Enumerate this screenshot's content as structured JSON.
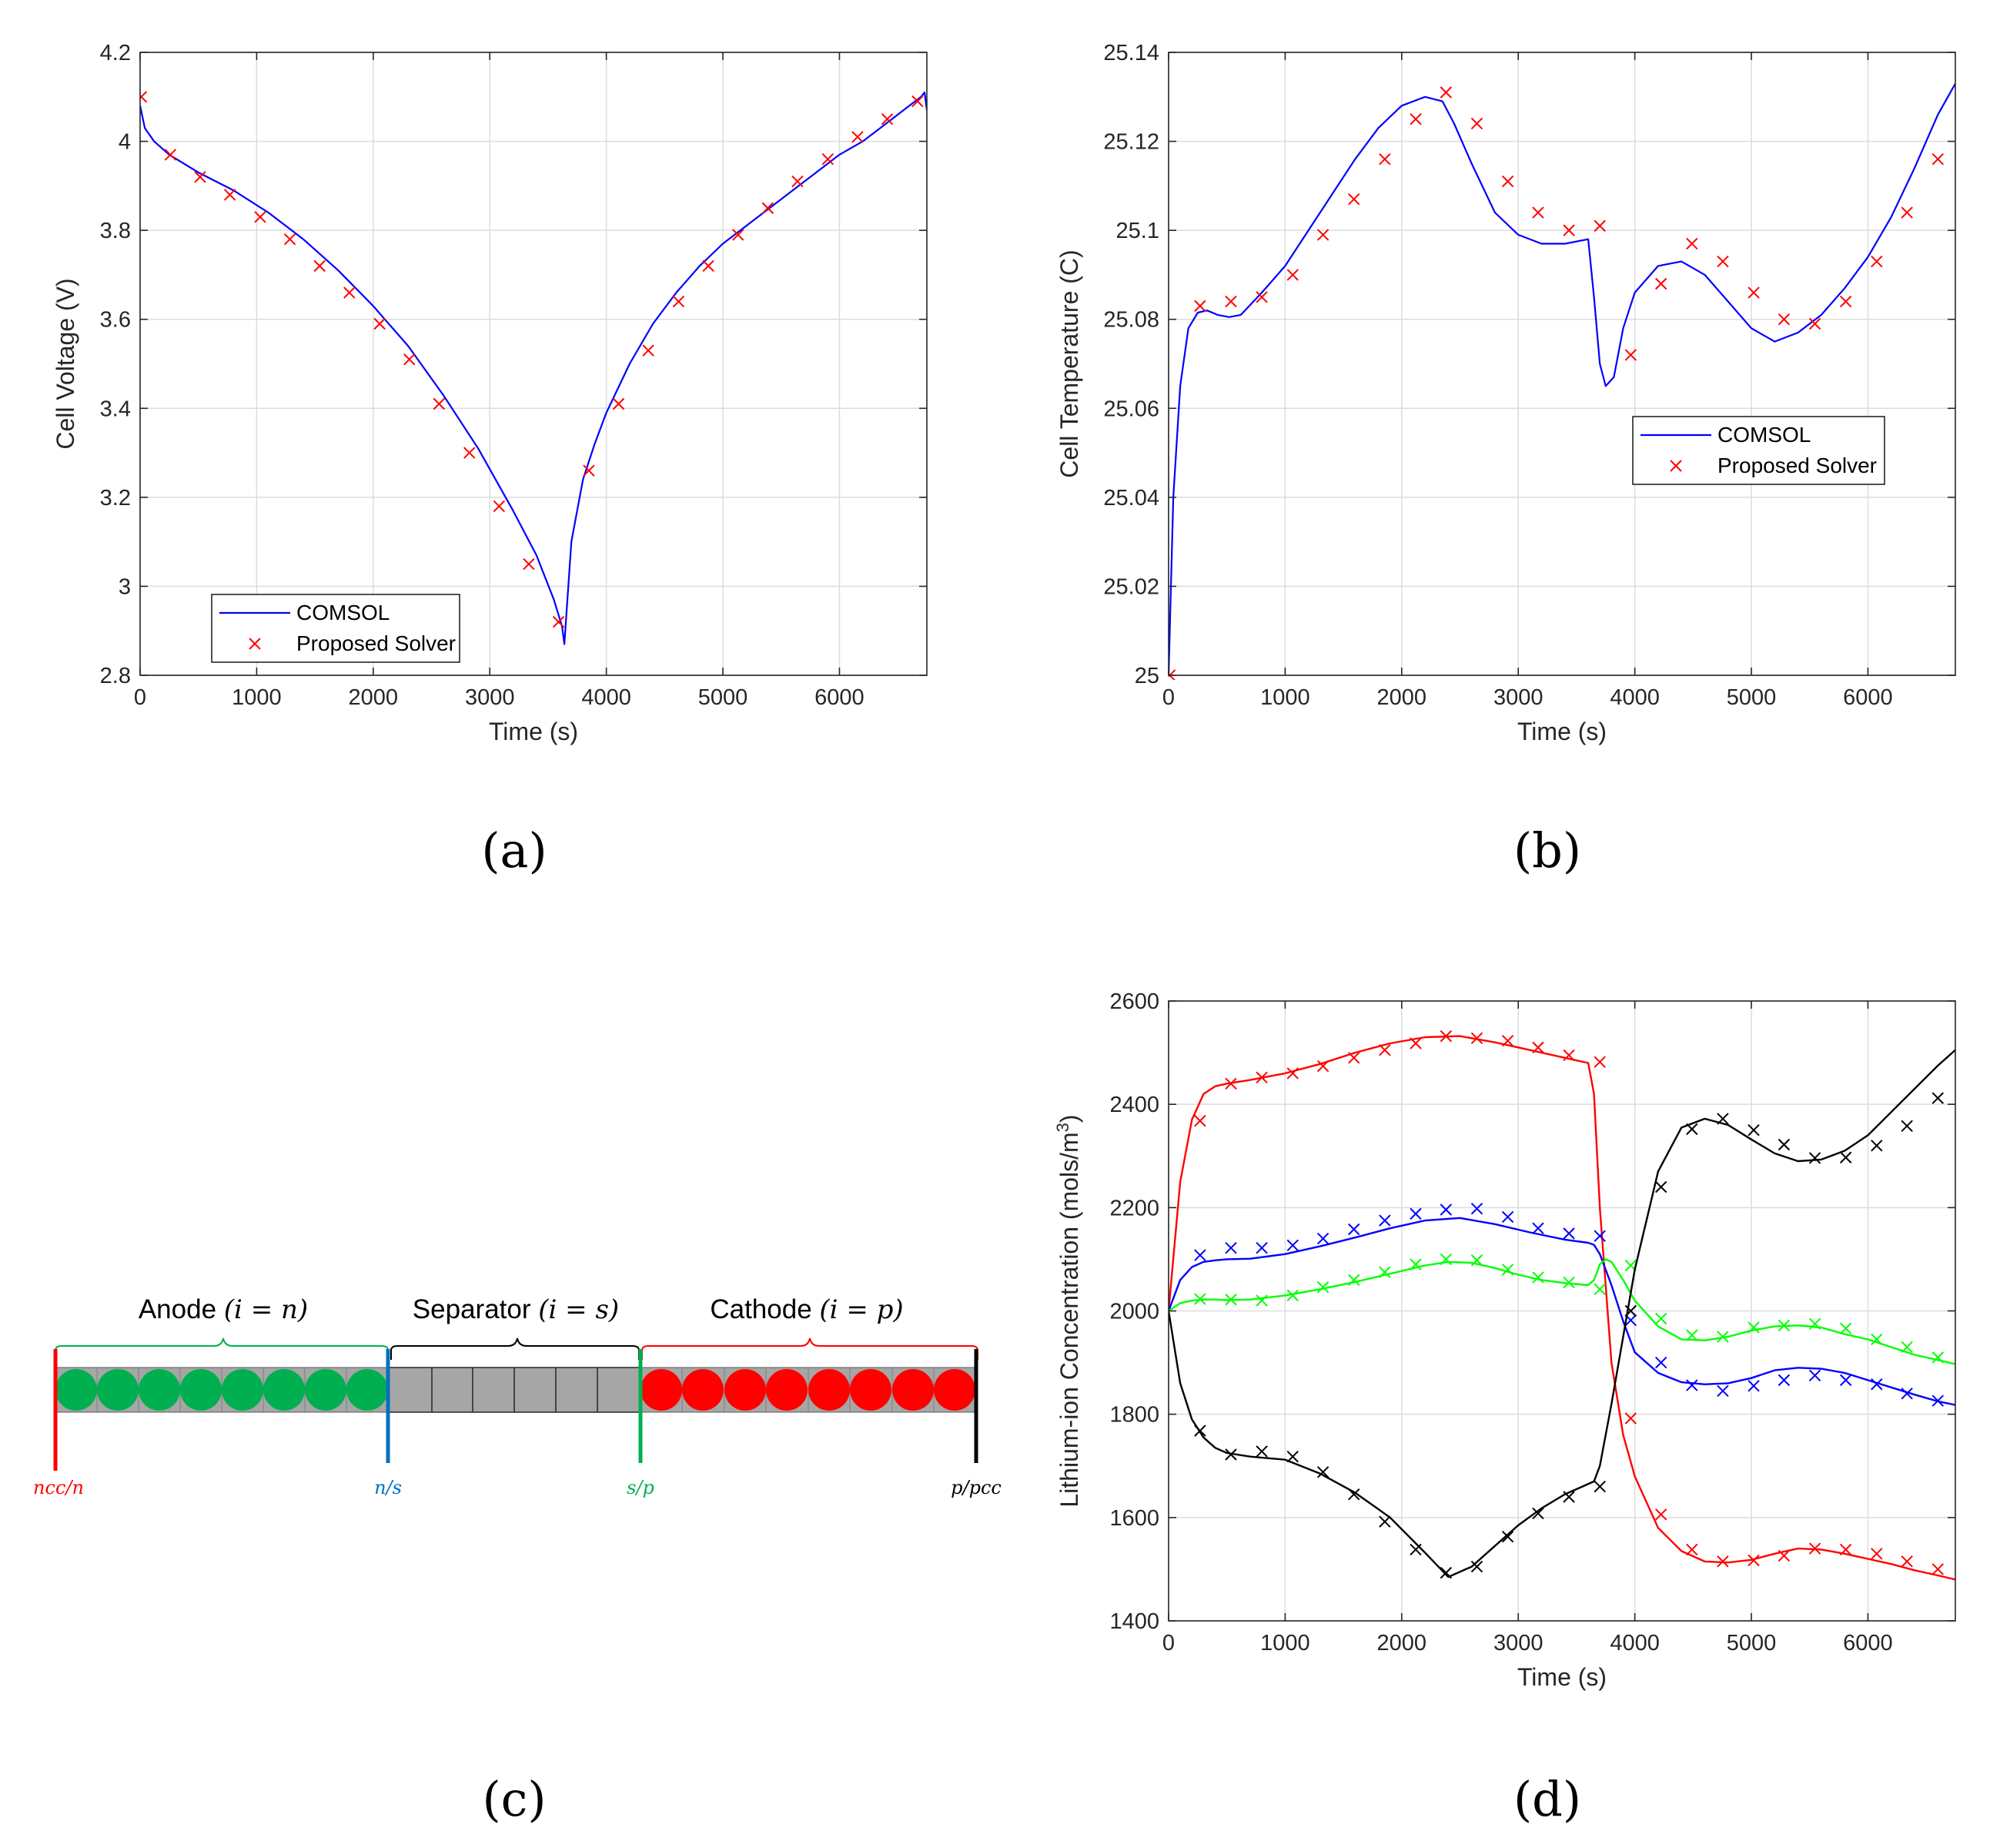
{
  "panels": {
    "a": "(a)",
    "b": "(b)",
    "c": "(c)",
    "d": "(d)"
  },
  "chart_data": [
    {
      "id": "a",
      "type": "line",
      "xlabel": "Time (s)",
      "ylabel": "Cell Voltage (V)",
      "xlim": [
        0,
        6750
      ],
      "ylim": [
        2.8,
        4.2
      ],
      "xticks": [
        0,
        1000,
        2000,
        3000,
        4000,
        5000,
        6000
      ],
      "xtick_labels": [
        "0",
        "1000",
        "2000",
        "3000",
        "4000",
        "5000",
        "6000"
      ],
      "yticks": [
        2.8,
        3.0,
        3.2,
        3.4,
        3.6,
        3.8,
        4.0,
        4.2
      ],
      "ytick_labels": [
        "2.8",
        "3",
        "3.2",
        "3.4",
        "3.6",
        "3.8",
        "4",
        "4.2"
      ],
      "grid": true,
      "legend": {
        "position": "bottom-left",
        "line_label": "COMSOL",
        "marker_label": "Proposed Solver"
      },
      "series": [
        {
          "name": "COMSOL",
          "style": "line",
          "color": "#0000ff",
          "x": [
            0,
            40,
            120,
            250,
            500,
            800,
            1100,
            1400,
            1700,
            2000,
            2300,
            2600,
            2900,
            3200,
            3400,
            3550,
            3620,
            3640,
            3700,
            3800,
            3900,
            4000,
            4200,
            4400,
            4600,
            4800,
            5000,
            5200,
            5400,
            5600,
            5800,
            6000,
            6200,
            6400,
            6600,
            6700,
            6730,
            6750
          ],
          "y": [
            4.08,
            4.03,
            4.0,
            3.97,
            3.93,
            3.89,
            3.84,
            3.78,
            3.71,
            3.63,
            3.54,
            3.43,
            3.31,
            3.17,
            3.07,
            2.97,
            2.91,
            2.87,
            3.1,
            3.24,
            3.32,
            3.39,
            3.5,
            3.59,
            3.66,
            3.72,
            3.77,
            3.81,
            3.85,
            3.89,
            3.93,
            3.97,
            4.0,
            4.04,
            4.08,
            4.1,
            4.11,
            4.07
          ]
        },
        {
          "name": "Proposed Solver",
          "style": "marker",
          "color": "#ff0000",
          "x": [
            10,
            260,
            515,
            770,
            1030,
            1285,
            1540,
            1795,
            2055,
            2310,
            2565,
            2825,
            3080,
            3335,
            3590,
            3850,
            4105,
            4360,
            4620,
            4875,
            5130,
            5385,
            5640,
            5900,
            6155,
            6410,
            6670
          ],
          "y": [
            4.1,
            3.97,
            3.92,
            3.88,
            3.83,
            3.78,
            3.72,
            3.66,
            3.59,
            3.51,
            3.41,
            3.3,
            3.18,
            3.05,
            2.92,
            3.26,
            3.41,
            3.53,
            3.64,
            3.72,
            3.79,
            3.85,
            3.91,
            3.96,
            4.01,
            4.05,
            4.09
          ]
        }
      ]
    },
    {
      "id": "b",
      "type": "line",
      "xlabel": "Time (s)",
      "ylabel": "Cell Temperature (C)",
      "xlim": [
        0,
        6750
      ],
      "ylim": [
        25.0,
        25.14
      ],
      "xticks": [
        0,
        1000,
        2000,
        3000,
        4000,
        5000,
        6000
      ],
      "xtick_labels": [
        "0",
        "1000",
        "2000",
        "3000",
        "4000",
        "5000",
        "6000"
      ],
      "yticks": [
        25.0,
        25.02,
        25.04,
        25.06,
        25.08,
        25.1,
        25.12,
        25.14
      ],
      "ytick_labels": [
        "25",
        "25.02",
        "25.04",
        "25.06",
        "25.08",
        "25.1",
        "25.12",
        "25.14"
      ],
      "grid": true,
      "legend": {
        "position": "mid-right",
        "line_label": "COMSOL",
        "marker_label": "Proposed Solver"
      },
      "series": [
        {
          "name": "COMSOL",
          "style": "line",
          "color": "#0000ff",
          "x": [
            0,
            40,
            100,
            170,
            250,
            330,
            420,
            520,
            620,
            800,
            1000,
            1200,
            1400,
            1600,
            1800,
            2000,
            2200,
            2350,
            2450,
            2600,
            2800,
            3000,
            3200,
            3400,
            3600,
            3650,
            3700,
            3750,
            3820,
            3900,
            4000,
            4200,
            4400,
            4600,
            4800,
            5000,
            5200,
            5400,
            5600,
            5800,
            6000,
            6200,
            6400,
            6600,
            6750
          ],
          "y": [
            25.0,
            25.04,
            25.065,
            25.078,
            25.0815,
            25.082,
            25.081,
            25.0805,
            25.081,
            25.086,
            25.092,
            25.1,
            25.108,
            25.116,
            25.123,
            25.128,
            25.13,
            25.129,
            25.124,
            25.115,
            25.104,
            25.099,
            25.097,
            25.097,
            25.098,
            25.085,
            25.07,
            25.065,
            25.067,
            25.078,
            25.086,
            25.092,
            25.093,
            25.09,
            25.084,
            25.078,
            25.075,
            25.077,
            25.081,
            25.087,
            25.094,
            25.103,
            25.114,
            25.126,
            25.133
          ]
        },
        {
          "name": "Proposed Solver",
          "style": "marker",
          "color": "#ff0000",
          "x": [
            10,
            270,
            535,
            800,
            1065,
            1325,
            1590,
            1855,
            2120,
            2380,
            2645,
            2910,
            3170,
            3435,
            3700,
            3965,
            4225,
            4490,
            4755,
            5020,
            5280,
            5545,
            5810,
            6075,
            6335,
            6600
          ],
          "y": [
            25.0,
            25.083,
            25.084,
            25.085,
            25.09,
            25.099,
            25.107,
            25.116,
            25.125,
            25.131,
            25.124,
            25.111,
            25.104,
            25.1,
            25.101,
            25.072,
            25.088,
            25.097,
            25.093,
            25.086,
            25.08,
            25.079,
            25.084,
            25.093,
            25.104,
            25.116
          ]
        }
      ]
    },
    {
      "id": "d",
      "type": "line",
      "xlabel": "Time (s)",
      "ylabel": "Lithium-ion Concentration (mols/m",
      "ylabel_sup": "3",
      "ylabel_end": ")",
      "xlim": [
        0,
        6750
      ],
      "ylim": [
        1400,
        2600
      ],
      "xticks": [
        0,
        1000,
        2000,
        3000,
        4000,
        5000,
        6000
      ],
      "xtick_labels": [
        "0",
        "1000",
        "2000",
        "3000",
        "4000",
        "5000",
        "6000"
      ],
      "yticks": [
        1400,
        1600,
        1800,
        2000,
        2200,
        2400,
        2600
      ],
      "ytick_labels": [
        "1400",
        "1600",
        "1800",
        "2000",
        "2200",
        "2400",
        "2600"
      ],
      "grid": true,
      "series": [
        {
          "name": "red",
          "color": "#ff0000",
          "line_x": [
            0,
            100,
            200,
            300,
            400,
            500,
            700,
            1000,
            1300,
            1600,
            1900,
            2200,
            2500,
            2800,
            3100,
            3400,
            3600,
            3650,
            3700,
            3800,
            3900,
            4000,
            4200,
            4400,
            4600,
            4800,
            5000,
            5200,
            5400,
            5600,
            5800,
            6000,
            6200,
            6400,
            6600,
            6750
          ],
          "line_y": [
            2000,
            2250,
            2370,
            2420,
            2435,
            2440,
            2447,
            2460,
            2478,
            2500,
            2518,
            2530,
            2532,
            2520,
            2505,
            2490,
            2480,
            2420,
            2200,
            1900,
            1760,
            1680,
            1580,
            1535,
            1515,
            1513,
            1518,
            1530,
            1540,
            1538,
            1530,
            1520,
            1510,
            1498,
            1488,
            1480
          ],
          "mark_x": [
            270,
            535,
            800,
            1065,
            1325,
            1590,
            1855,
            2120,
            2380,
            2645,
            2910,
            3170,
            3435,
            3700,
            3965,
            4225,
            4490,
            4755,
            5020,
            5280,
            5545,
            5810,
            6075,
            6335,
            6600
          ],
          "mark_y": [
            2368,
            2440,
            2452,
            2460,
            2474,
            2490,
            2505,
            2518,
            2532,
            2528,
            2523,
            2510,
            2495,
            2482,
            1792,
            1606,
            1538,
            1515,
            1517,
            1526,
            1540,
            1538,
            1530,
            1515,
            1500
          ]
        },
        {
          "name": "blue",
          "color": "#0000ff",
          "line_x": [
            0,
            100,
            200,
            300,
            400,
            500,
            700,
            1000,
            1300,
            1600,
            1900,
            2200,
            2500,
            2800,
            3100,
            3400,
            3600,
            3650,
            3700,
            3800,
            3900,
            4000,
            4200,
            4400,
            4600,
            4800,
            5000,
            5200,
            5400,
            5600,
            5800,
            6000,
            6200,
            6400,
            6600,
            6750
          ],
          "line_y": [
            2000,
            2060,
            2085,
            2095,
            2098,
            2100,
            2101,
            2110,
            2125,
            2142,
            2160,
            2175,
            2180,
            2168,
            2152,
            2138,
            2132,
            2128,
            2110,
            2050,
            1980,
            1920,
            1880,
            1862,
            1858,
            1860,
            1870,
            1885,
            1890,
            1888,
            1880,
            1866,
            1852,
            1838,
            1825,
            1818
          ],
          "mark_x": [
            270,
            535,
            800,
            1065,
            1325,
            1590,
            1855,
            2120,
            2380,
            2645,
            2910,
            3170,
            3435,
            3700,
            3965,
            4225,
            4490,
            4755,
            5020,
            5280,
            5545,
            5810,
            6075,
            6335,
            6600
          ],
          "mark_y": [
            2108,
            2122,
            2122,
            2127,
            2140,
            2158,
            2175,
            2188,
            2196,
            2198,
            2182,
            2160,
            2150,
            2145,
            1982,
            1900,
            1856,
            1845,
            1855,
            1866,
            1875,
            1866,
            1858,
            1840,
            1826
          ]
        },
        {
          "name": "green",
          "color": "#00ff00",
          "line_x": [
            0,
            100,
            200,
            300,
            400,
            500,
            700,
            1000,
            1300,
            1600,
            1900,
            2200,
            2400,
            2600,
            2800,
            3000,
            3200,
            3400,
            3600,
            3650,
            3700,
            3750,
            3800,
            3900,
            4000,
            4200,
            4400,
            4600,
            4800,
            5000,
            5200,
            5400,
            5600,
            5800,
            6000,
            6200,
            6400,
            6600,
            6750
          ],
          "line_y": [
            2000,
            2015,
            2020,
            2022,
            2022,
            2021,
            2022,
            2030,
            2042,
            2056,
            2072,
            2088,
            2095,
            2093,
            2083,
            2070,
            2060,
            2054,
            2050,
            2060,
            2090,
            2100,
            2095,
            2060,
            2020,
            1970,
            1945,
            1943,
            1950,
            1962,
            1970,
            1972,
            1968,
            1955,
            1945,
            1930,
            1915,
            1905,
            1897
          ],
          "mark_x": [
            270,
            535,
            800,
            1065,
            1325,
            1590,
            1855,
            2120,
            2380,
            2645,
            2910,
            3170,
            3435,
            3700,
            3965,
            4225,
            4490,
            4755,
            5020,
            5280,
            5545,
            5810,
            6075,
            6335,
            6600
          ],
          "mark_y": [
            2023,
            2022,
            2020,
            2030,
            2046,
            2060,
            2075,
            2090,
            2100,
            2098,
            2080,
            2065,
            2055,
            2042,
            2088,
            1985,
            1953,
            1950,
            1968,
            1972,
            1975,
            1966,
            1945,
            1930,
            1910
          ]
        },
        {
          "name": "black",
          "color": "#000000",
          "line_x": [
            0,
            100,
            200,
            300,
            400,
            500,
            700,
            1000,
            1300,
            1600,
            1900,
            2200,
            2400,
            2600,
            2800,
            3000,
            3200,
            3400,
            3550,
            3650,
            3700,
            3800,
            3900,
            4000,
            4200,
            4400,
            4600,
            4800,
            5000,
            5200,
            5400,
            5600,
            5800,
            6000,
            6200,
            6400,
            6600,
            6750
          ],
          "line_y": [
            2000,
            1860,
            1790,
            1755,
            1735,
            1725,
            1718,
            1712,
            1685,
            1648,
            1600,
            1532,
            1485,
            1505,
            1545,
            1585,
            1618,
            1645,
            1660,
            1670,
            1700,
            1820,
            1950,
            2080,
            2270,
            2355,
            2372,
            2360,
            2332,
            2305,
            2290,
            2293,
            2310,
            2340,
            2385,
            2430,
            2475,
            2505
          ],
          "mark_x": [
            270,
            535,
            800,
            1065,
            1325,
            1590,
            1855,
            2120,
            2380,
            2645,
            2910,
            3170,
            3435,
            3700,
            3965,
            4225,
            4490,
            4755,
            5020,
            5280,
            5545,
            5810,
            6075,
            6335,
            6600
          ],
          "mark_y": [
            1768,
            1722,
            1728,
            1718,
            1688,
            1645,
            1592,
            1538,
            1493,
            1505,
            1563,
            1608,
            1640,
            1660,
            2000,
            2240,
            2352,
            2372,
            2350,
            2322,
            2296,
            2297,
            2320,
            2358,
            2412
          ]
        }
      ]
    }
  ],
  "diagram": {
    "regions": [
      {
        "id": "anode",
        "label": "Anode ",
        "sub": "(i = n)",
        "color": "#00b050",
        "brace_color": "#00b050"
      },
      {
        "id": "separator",
        "label": "Separator ",
        "sub": "(i = s)",
        "color": "#a6a6a6",
        "brace_color": "#000000"
      },
      {
        "id": "cathode",
        "label": "Cathode ",
        "sub": "(i = p)",
        "color": "#ff0000",
        "brace_color": "#ff0000"
      }
    ],
    "interfaces": [
      {
        "label": "ncc/n",
        "color": "#ff0000"
      },
      {
        "label": "n/s",
        "color": "#0070c0"
      },
      {
        "label": "s/p",
        "color": "#00b050"
      },
      {
        "label": "p/pcc",
        "color": "#000000"
      }
    ]
  }
}
